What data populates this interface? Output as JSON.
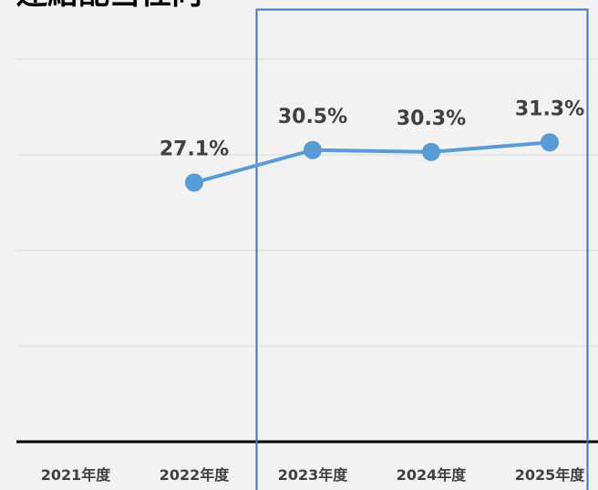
{
  "chart_data": {
    "type": "line",
    "title": "連結配当性向",
    "categories": [
      "2021年度",
      "2022年度",
      "2023年度",
      "2024年度",
      "2025年度"
    ],
    "series": [
      {
        "name": "連結配当性向",
        "color": "#5b9bd5",
        "values": [
          null,
          27.1,
          30.5,
          30.3,
          31.3
        ],
        "value_labels": [
          null,
          "27.1%",
          "30.5%",
          "30.3%",
          "31.3%"
        ]
      }
    ],
    "ylim": [
      0,
      40
    ],
    "yticks": [
      0,
      10,
      20,
      30,
      40
    ],
    "grid": true
  }
}
